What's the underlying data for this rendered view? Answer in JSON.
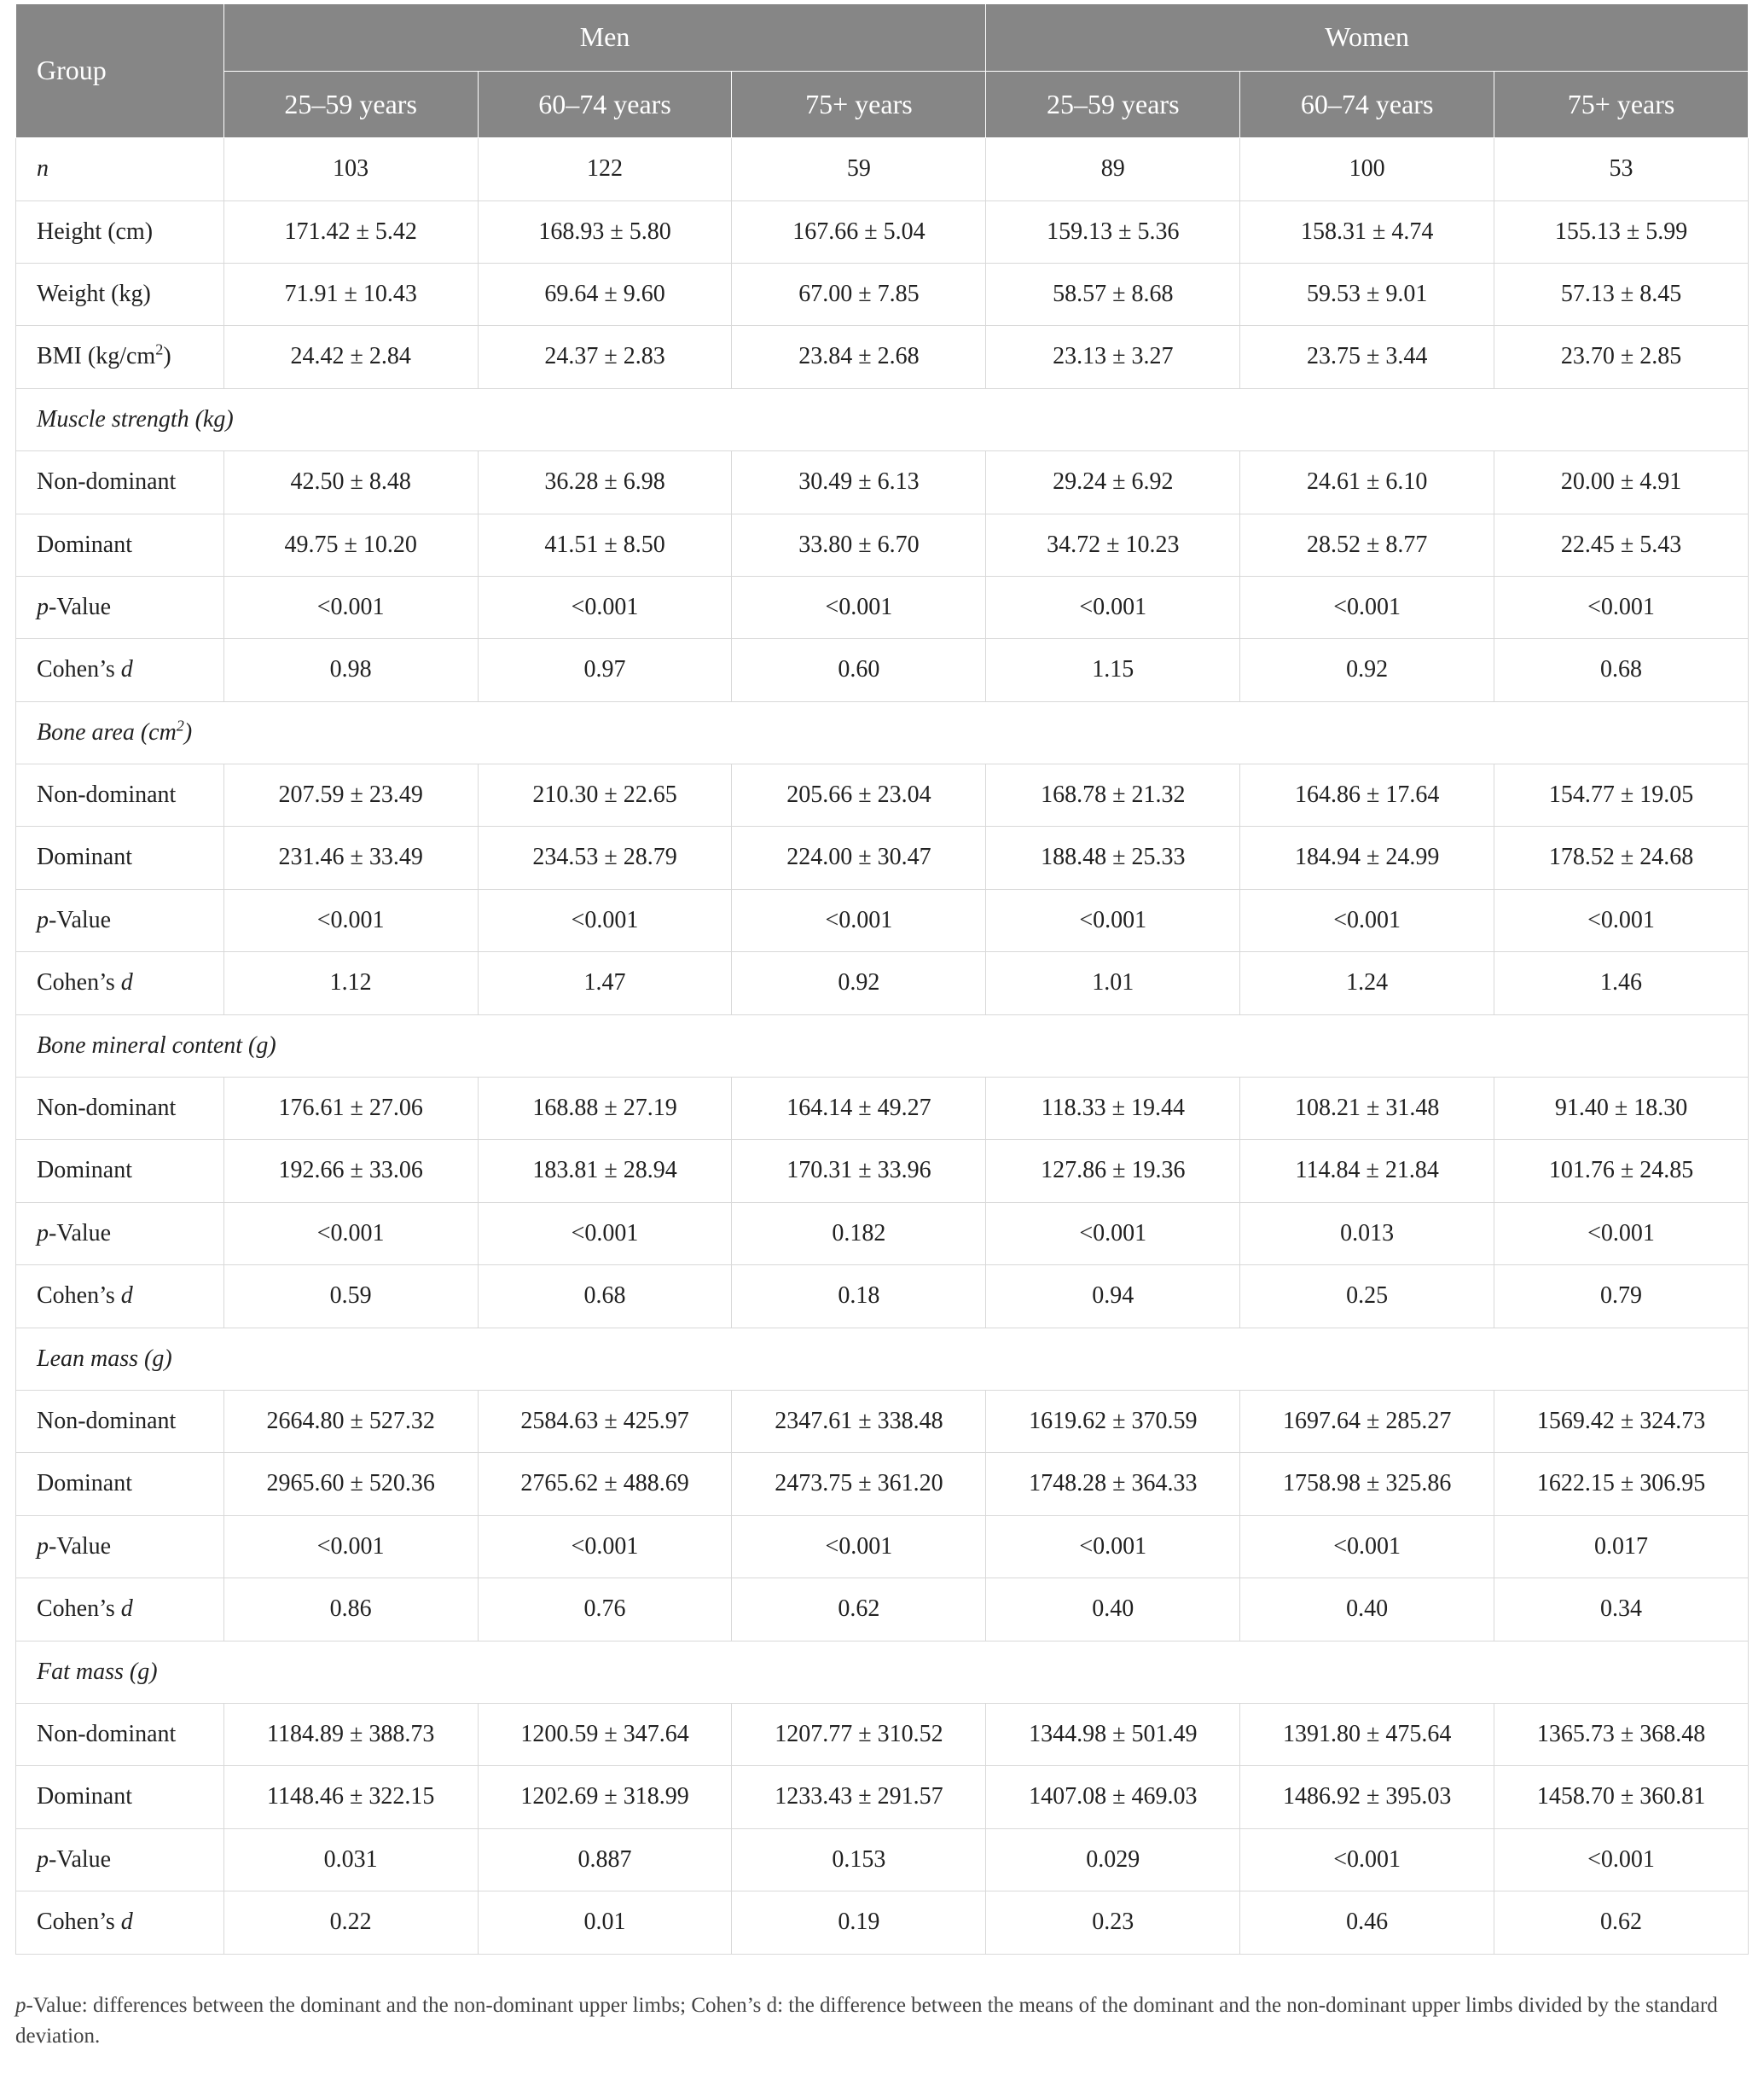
{
  "colors": {
    "header_bg": "#868686",
    "header_fg": "#ffffff",
    "border": "#d9d9d9",
    "text": "#212121",
    "bg": "#ffffff"
  },
  "header": {
    "group_label": "Group",
    "men_label": "Men",
    "women_label": "Women",
    "age1": "25–59 years",
    "age2": "60–74 years",
    "age3": "75+ years"
  },
  "rows": {
    "n": {
      "label_html": "<i>n</i>",
      "v": [
        "103",
        "122",
        "59",
        "89",
        "100",
        "53"
      ]
    },
    "height": {
      "label_html": "Height (cm)",
      "v": [
        "171.42 ± 5.42",
        "168.93 ± 5.80",
        "167.66 ± 5.04",
        "159.13 ± 5.36",
        "158.31 ± 4.74",
        "155.13 ± 5.99"
      ]
    },
    "weight": {
      "label_html": "Weight (kg)",
      "v": [
        "71.91 ± 10.43",
        "69.64 ± 9.60",
        "67.00 ± 7.85",
        "58.57 ± 8.68",
        "59.53 ± 9.01",
        "57.13 ± 8.45"
      ]
    },
    "bmi": {
      "label_html": "BMI (kg/cm<span class=\"sup\">2</span>)",
      "v": [
        "24.42 ± 2.84",
        "24.37 ± 2.83",
        "23.84 ± 2.68",
        "23.13 ± 3.27",
        "23.75 ± 3.44",
        "23.70 ± 2.85"
      ]
    },
    "sec_muscle": {
      "label_html": "Muscle strength (kg)"
    },
    "ms_nd": {
      "label_html": "Non-dominant",
      "v": [
        "42.50 ± 8.48",
        "36.28 ± 6.98",
        "30.49 ± 6.13",
        "29.24 ± 6.92",
        "24.61 ± 6.10",
        "20.00 ± 4.91"
      ]
    },
    "ms_d": {
      "label_html": "Dominant",
      "v": [
        "49.75 ± 10.20",
        "41.51 ± 8.50",
        "33.80 ± 6.70",
        "34.72 ± 10.23",
        "28.52 ± 8.77",
        "22.45 ± 5.43"
      ]
    },
    "ms_p": {
      "label_html": "<i>p</i>-Value",
      "v": [
        "<0.001",
        "<0.001",
        "<0.001",
        "<0.001",
        "<0.001",
        "<0.001"
      ]
    },
    "ms_c": {
      "label_html": "Cohen’s <i>d</i>",
      "v": [
        "0.98",
        "0.97",
        "0.60",
        "1.15",
        "0.92",
        "0.68"
      ]
    },
    "sec_bonearea": {
      "label_html": "Bone area (cm<span class=\"sup\">2</span>)"
    },
    "ba_nd": {
      "label_html": "Non-dominant",
      "v": [
        "207.59 ± 23.49",
        "210.30 ± 22.65",
        "205.66 ± 23.04",
        "168.78 ± 21.32",
        "164.86 ± 17.64",
        "154.77 ± 19.05"
      ]
    },
    "ba_d": {
      "label_html": "Dominant",
      "v": [
        "231.46 ± 33.49",
        "234.53 ± 28.79",
        "224.00 ± 30.47",
        "188.48 ± 25.33",
        "184.94 ± 24.99",
        "178.52 ± 24.68"
      ]
    },
    "ba_p": {
      "label_html": "<i>p</i>-Value",
      "v": [
        "<0.001",
        "<0.001",
        "<0.001",
        "<0.001",
        "<0.001",
        "<0.001"
      ]
    },
    "ba_c": {
      "label_html": "Cohen’s <i>d</i>",
      "v": [
        "1.12",
        "1.47",
        "0.92",
        "1.01",
        "1.24",
        "1.46"
      ]
    },
    "sec_bmc": {
      "label_html": "Bone mineral content (g)"
    },
    "bmc_nd": {
      "label_html": "Non-dominant",
      "v": [
        "176.61 ± 27.06",
        "168.88 ± 27.19",
        "164.14 ± 49.27",
        "118.33 ± 19.44",
        "108.21 ± 31.48",
        "91.40 ± 18.30"
      ]
    },
    "bmc_d": {
      "label_html": "Dominant",
      "v": [
        "192.66 ± 33.06",
        "183.81 ± 28.94",
        "170.31 ± 33.96",
        "127.86 ± 19.36",
        "114.84 ± 21.84",
        "101.76 ± 24.85"
      ]
    },
    "bmc_p": {
      "label_html": "<i>p</i>-Value",
      "v": [
        "<0.001",
        "<0.001",
        "0.182",
        "<0.001",
        "0.013",
        "<0.001"
      ]
    },
    "bmc_c": {
      "label_html": "Cohen’s <i>d</i>",
      "v": [
        "0.59",
        "0.68",
        "0.18",
        "0.94",
        "0.25",
        "0.79"
      ]
    },
    "sec_lean": {
      "label_html": "Lean mass (g)"
    },
    "lm_nd": {
      "label_html": "Non-dominant",
      "v": [
        "2664.80 ± 527.32",
        "2584.63 ± 425.97",
        "2347.61 ± 338.48",
        "1619.62 ± 370.59",
        "1697.64 ± 285.27",
        "1569.42 ± 324.73"
      ]
    },
    "lm_d": {
      "label_html": "Dominant",
      "v": [
        "2965.60 ± 520.36",
        "2765.62 ± 488.69",
        "2473.75 ± 361.20",
        "1748.28 ± 364.33",
        "1758.98 ± 325.86",
        "1622.15 ± 306.95"
      ]
    },
    "lm_p": {
      "label_html": "<i>p</i>-Value",
      "v": [
        "<0.001",
        "<0.001",
        "<0.001",
        "<0.001",
        "<0.001",
        "0.017"
      ]
    },
    "lm_c": {
      "label_html": "Cohen’s <i>d</i>",
      "v": [
        "0.86",
        "0.76",
        "0.62",
        "0.40",
        "0.40",
        "0.34"
      ]
    },
    "sec_fat": {
      "label_html": "Fat mass (g)"
    },
    "fm_nd": {
      "label_html": "Non-dominant",
      "v": [
        "1184.89 ± 388.73",
        "1200.59 ± 347.64",
        "1207.77 ± 310.52",
        "1344.98 ± 501.49",
        "1391.80 ± 475.64",
        "1365.73 ± 368.48"
      ]
    },
    "fm_d": {
      "label_html": "Dominant",
      "v": [
        "1148.46 ± 322.15",
        "1202.69 ± 318.99",
        "1233.43 ± 291.57",
        "1407.08 ± 469.03",
        "1486.92 ± 395.03",
        "1458.70 ± 360.81"
      ]
    },
    "fm_p": {
      "label_html": "<i>p</i>-Value",
      "v": [
        "0.031",
        "0.887",
        "0.153",
        "0.029",
        "<0.001",
        "<0.001"
      ]
    },
    "fm_c": {
      "label_html": "Cohen’s <i>d</i>",
      "v": [
        "0.22",
        "0.01",
        "0.19",
        "0.23",
        "0.46",
        "0.62"
      ]
    }
  },
  "row_order": [
    [
      "data",
      "n"
    ],
    [
      "data",
      "height"
    ],
    [
      "data",
      "weight"
    ],
    [
      "data",
      "bmi"
    ],
    [
      "section",
      "sec_muscle"
    ],
    [
      "data",
      "ms_nd"
    ],
    [
      "data",
      "ms_d"
    ],
    [
      "data",
      "ms_p"
    ],
    [
      "data",
      "ms_c"
    ],
    [
      "section",
      "sec_bonearea"
    ],
    [
      "data",
      "ba_nd"
    ],
    [
      "data",
      "ba_d"
    ],
    [
      "data",
      "ba_p"
    ],
    [
      "data",
      "ba_c"
    ],
    [
      "section",
      "sec_bmc"
    ],
    [
      "data",
      "bmc_nd"
    ],
    [
      "data",
      "bmc_d"
    ],
    [
      "data",
      "bmc_p"
    ],
    [
      "data",
      "bmc_c"
    ],
    [
      "section",
      "sec_lean"
    ],
    [
      "data",
      "lm_nd"
    ],
    [
      "data",
      "lm_d"
    ],
    [
      "data",
      "lm_p"
    ],
    [
      "data",
      "lm_c"
    ],
    [
      "section",
      "sec_fat"
    ],
    [
      "data",
      "fm_nd"
    ],
    [
      "data",
      "fm_d"
    ],
    [
      "data",
      "fm_p"
    ],
    [
      "data",
      "fm_c"
    ]
  ],
  "footnote_html": "<i>p</i>-Value: differences between the dominant and the non-dominant upper limbs; Cohen’s d: the difference between the means of the dominant and the non-dominant upper limbs divided by the standard deviation."
}
